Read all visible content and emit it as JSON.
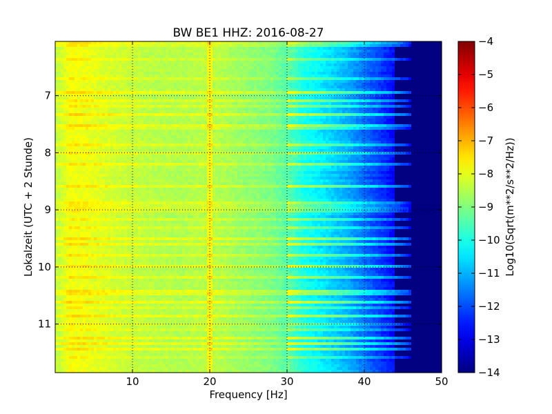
{
  "chart_data": {
    "type": "heatmap",
    "title": "BW BE1 HHZ: 2016-08-27",
    "xlabel": "Frequency [Hz]",
    "ylabel": "Lokalzeit (UTC + 2 Stunde)",
    "colorbar_label": "Log10(Sqrt(m**2/s**2/Hz))",
    "xlim": [
      0,
      50
    ],
    "ylim": [
      11.85,
      6.05
    ],
    "y_inverted": true,
    "x_ticks": [
      10,
      20,
      30,
      40,
      50
    ],
    "x_tick_labels": [
      "10",
      "20",
      "30",
      "40",
      "50"
    ],
    "y_ticks": [
      7,
      8,
      9,
      10,
      11
    ],
    "y_tick_labels": [
      "7",
      "8",
      "9",
      "10",
      "11"
    ],
    "color_range": [
      -14,
      -4
    ],
    "colorbar_ticks": [
      -4,
      -5,
      -6,
      -7,
      -8,
      -9,
      -10,
      -11,
      -12,
      -13,
      -14
    ],
    "colorbar_tick_labels": [
      "−4",
      "−5",
      "−6",
      "−7",
      "−8",
      "−9",
      "−10",
      "−11",
      "−12",
      "−13",
      "−14"
    ],
    "colormap": "jet",
    "grid": true,
    "spectral_profile": {
      "frequency_hz": [
        0.5,
        2,
        4,
        8,
        12,
        16,
        19.5,
        20,
        20.5,
        24,
        28,
        30,
        32,
        35,
        38,
        40,
        42,
        44,
        45.5,
        46,
        50
      ],
      "log10_amplitude": [
        -8.4,
        -7.9,
        -8.0,
        -8.3,
        -8.5,
        -8.6,
        -8.5,
        -7.6,
        -8.5,
        -8.8,
        -9.1,
        -9.5,
        -10.2,
        -10.7,
        -11.3,
        -11.9,
        -12.4,
        -13.0,
        -13.6,
        -14.0,
        -14.0
      ]
    },
    "noisy_time_bands": [
      6.1,
      6.35,
      6.7,
      6.95,
      7.1,
      7.2,
      7.35,
      7.55,
      7.85,
      8.0,
      8.2,
      8.6,
      8.9,
      9.0,
      9.15,
      9.3,
      9.5,
      9.6,
      9.8,
      10.0,
      10.2,
      10.45,
      10.6,
      10.7,
      10.85,
      11.0,
      11.1,
      11.25,
      11.35,
      11.45,
      11.6
    ]
  }
}
